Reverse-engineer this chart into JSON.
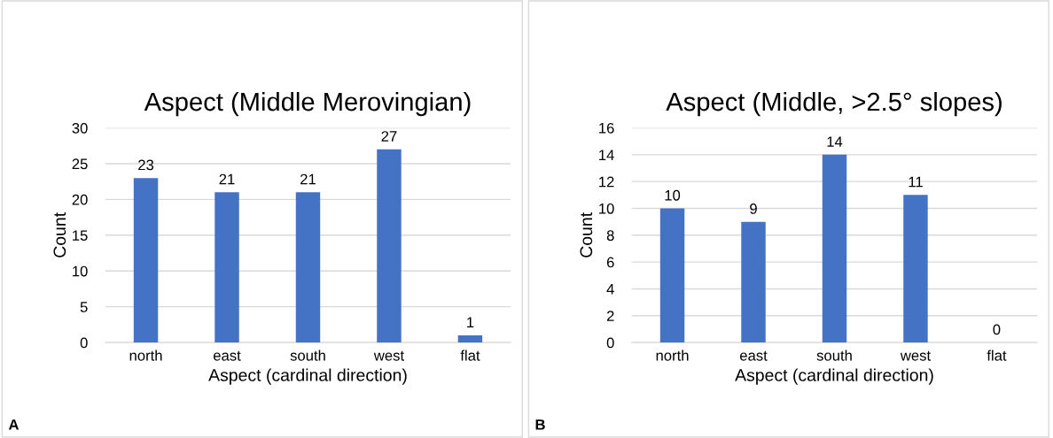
{
  "chart_data": [
    {
      "type": "bar",
      "title": "Aspect (Middle Merovingian)",
      "xlabel": "Aspect (cardinal direction)",
      "ylabel": "Count",
      "categories": [
        "north",
        "east",
        "south",
        "west",
        "flat"
      ],
      "values": [
        23,
        21,
        21,
        27,
        1
      ],
      "color": "#4472c4",
      "ylim": [
        0,
        30
      ],
      "yticks": [
        0,
        5,
        10,
        15,
        20,
        25,
        30
      ],
      "grid": "y",
      "data_labels": true,
      "annotations": [
        "A"
      ]
    },
    {
      "type": "bar",
      "title": "Aspect (Middle, >2.5° slopes)",
      "xlabel": "Aspect (cardinal direction)",
      "ylabel": "Count",
      "categories": [
        "north",
        "east",
        "south",
        "west",
        "flat"
      ],
      "values": [
        10,
        9,
        14,
        11,
        0
      ],
      "color": "#4472c4",
      "ylim": [
        0,
        16
      ],
      "yticks": [
        0,
        2,
        4,
        6,
        8,
        10,
        12,
        14,
        16
      ],
      "grid": "y",
      "data_labels": true,
      "annotations": [
        "B"
      ]
    }
  ]
}
